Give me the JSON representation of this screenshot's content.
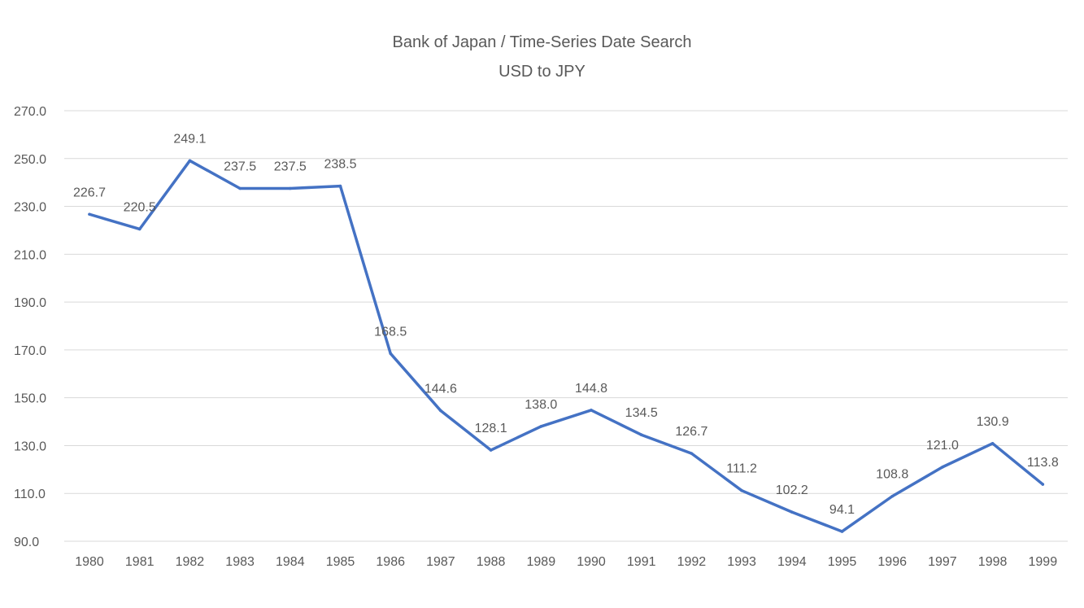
{
  "chart_data": {
    "type": "line",
    "title": "Bank of Japan / Time-Series Date Search",
    "subtitle": "USD to JPY",
    "xlabel": "",
    "ylabel": "",
    "categories": [
      "1980",
      "1981",
      "1982",
      "1983",
      "1984",
      "1985",
      "1986",
      "1987",
      "1988",
      "1989",
      "1990",
      "1991",
      "1992",
      "1993",
      "1994",
      "1995",
      "1996",
      "1997",
      "1998",
      "1999"
    ],
    "series": [
      {
        "values": [
          226.7,
          220.5,
          249.1,
          237.5,
          237.5,
          238.5,
          168.5,
          144.6,
          128.1,
          138.0,
          144.8,
          134.5,
          126.7,
          111.2,
          102.2,
          94.1,
          108.8,
          121.0,
          130.9,
          113.8
        ],
        "data_labels": [
          "226.7",
          "220.5",
          "249.1",
          "237.5",
          "237.5",
          "238.5",
          "168.5",
          "144.6",
          "128.1",
          "138.0",
          "144.8",
          "134.5",
          "126.7",
          "111.2",
          "102.2",
          "94.1",
          "108.8",
          "121.0",
          "130.9",
          "113.8"
        ],
        "color": "#4472c4"
      }
    ],
    "ylim": [
      90,
      270
    ],
    "y_ticks": [
      "90.0",
      "110.0",
      "130.0",
      "150.0",
      "170.0",
      "190.0",
      "210.0",
      "230.0",
      "250.0",
      "270.0"
    ],
    "grid": "horizontal",
    "legend": "none",
    "colors": {
      "line": "#4472c4",
      "grid": "#d9d9d9",
      "text": "#595959"
    }
  }
}
